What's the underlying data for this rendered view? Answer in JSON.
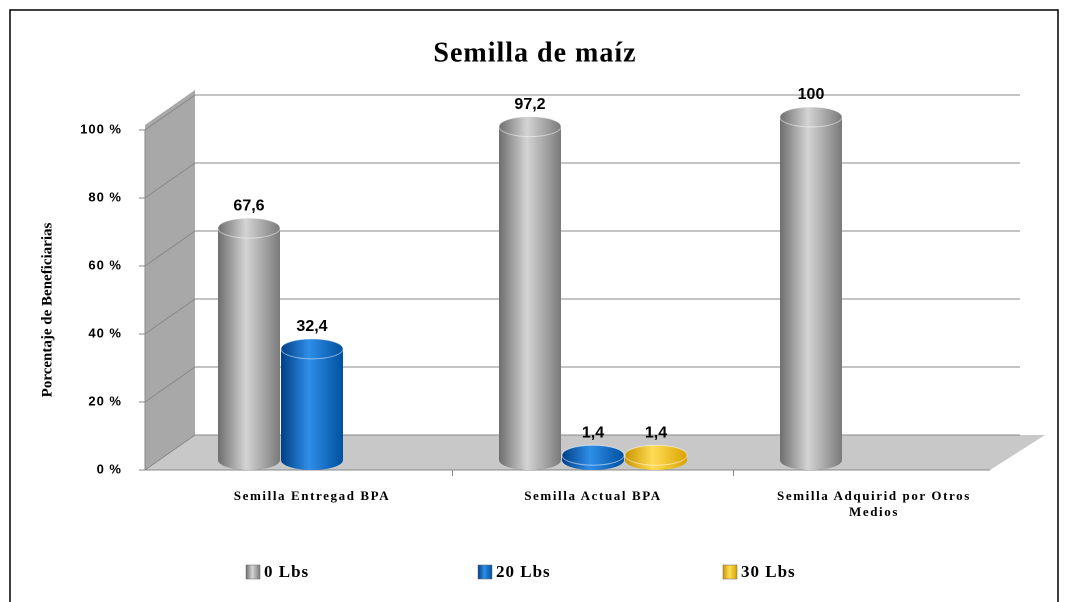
{
  "chart_data": {
    "type": "bar",
    "title": "Semilla de maíz",
    "y_label": "Porcentaje de Beneficiarias",
    "categories": [
      "Semilla Entregad BPA",
      "Semilla Actual BPA",
      "Semilla Adquirid por Otros Medios"
    ],
    "series": [
      {
        "name": "0 Lbs",
        "color": "#a6a6a6",
        "values": [
          67.6,
          97.2,
          100
        ],
        "value_labels": [
          "67,6",
          "97,2",
          "100"
        ]
      },
      {
        "name": "20 Lbs",
        "color": "#0a6cc8",
        "values": [
          32.4,
          1.4,
          null
        ],
        "value_labels": [
          "32,4",
          "1,4",
          null
        ]
      },
      {
        "name": "30 Lbs",
        "color": "#f5c000",
        "values": [
          null,
          1.4,
          null
        ],
        "value_labels": [
          null,
          "1,4",
          null
        ]
      }
    ],
    "ylim": [
      0,
      100
    ],
    "yticks": [
      {
        "value": 0,
        "label": "0 %"
      },
      {
        "value": 20,
        "label": "20 %"
      },
      {
        "value": 40,
        "label": "40 %"
      },
      {
        "value": 60,
        "label": "60 %"
      },
      {
        "value": 80,
        "label": "80 %"
      },
      {
        "value": 100,
        "label": "100 %"
      }
    ],
    "grid": true,
    "legend": "bottom"
  }
}
